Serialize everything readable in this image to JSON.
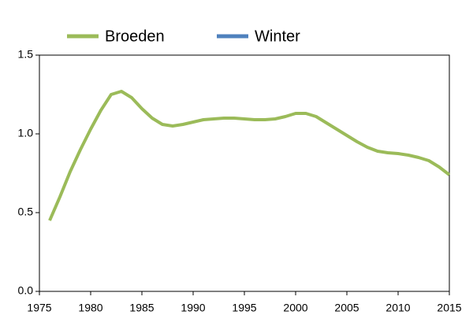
{
  "chart_data": {
    "type": "line",
    "x": [
      1976,
      1977,
      1978,
      1979,
      1980,
      1981,
      1982,
      1983,
      1984,
      1985,
      1986,
      1987,
      1988,
      1989,
      1990,
      1991,
      1992,
      1993,
      1994,
      1995,
      1996,
      1997,
      1998,
      1999,
      2000,
      2001,
      2002,
      2003,
      2004,
      2005,
      2006,
      2007,
      2008,
      2009,
      2010,
      2011,
      2012,
      2013,
      2014,
      2015
    ],
    "series": [
      {
        "name": "Broeden",
        "color": "#9bbb59",
        "values": [
          0.45,
          0.6,
          0.76,
          0.9,
          1.03,
          1.15,
          1.25,
          1.27,
          1.23,
          1.16,
          1.1,
          1.06,
          1.05,
          1.06,
          1.075,
          1.09,
          1.095,
          1.1,
          1.1,
          1.095,
          1.09,
          1.09,
          1.095,
          1.11,
          1.13,
          1.13,
          1.11,
          1.07,
          1.03,
          0.99,
          0.95,
          0.915,
          0.89,
          0.88,
          0.875,
          0.865,
          0.85,
          0.83,
          0.79,
          0.74
        ]
      },
      {
        "name": "Winter",
        "color": "#4f81bd",
        "values": [
          null,
          null,
          null,
          null,
          null,
          null,
          null,
          null,
          null,
          null,
          null,
          null,
          null,
          null,
          null,
          null,
          null,
          null,
          null,
          null,
          null,
          null,
          null,
          null,
          null,
          null,
          null,
          null,
          null,
          null,
          null,
          null,
          null,
          null,
          null,
          null,
          null,
          null,
          null,
          null
        ]
      }
    ],
    "xlim": [
      1975,
      2015
    ],
    "xticks": [
      1975,
      1980,
      1985,
      1990,
      1995,
      2000,
      2005,
      2010,
      2015
    ],
    "ylim": [
      0,
      1.5
    ],
    "yticks": [
      {
        "value": 0,
        "label": "0.0"
      },
      0.5,
      {
        "value": 1,
        "label": "1.0"
      },
      {
        "value": 1.5,
        "label": "1.5"
      }
    ],
    "legend": "top"
  }
}
